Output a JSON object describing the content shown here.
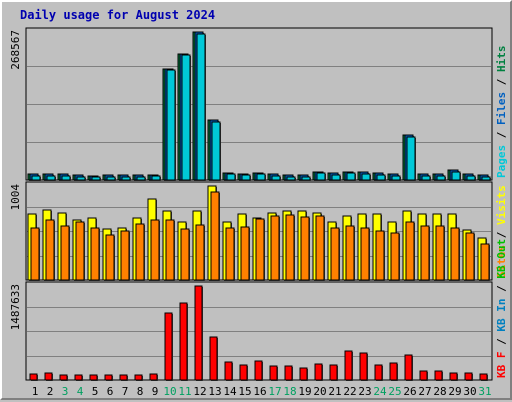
{
  "title": "Daily usage for August 2024",
  "colors": {
    "background": "#c0c0c0",
    "title": "#0000b0",
    "pages": "#00c8d8",
    "files": "#0060c0",
    "hits": "#008040",
    "visits": "#ffff00",
    "sites": "#ff8000",
    "kb_out": "#00c000",
    "kb_in": "#0080c0",
    "kb_f": "#ff0000",
    "weekend_day": "#00a060",
    "weekday_day": "#000000"
  },
  "chart_data": [
    {
      "type": "bar",
      "panel": "pages-files-hits",
      "y_max_label": "268567",
      "ylim": [
        0,
        268567
      ],
      "grid": true,
      "legend_labels": {
        "pages": "Pages",
        "files": "Files",
        "hits": "Hits",
        "sep": " / "
      },
      "series": [
        {
          "key": "hits",
          "name": "Hits",
          "values": [
            10400,
            11000,
            10000,
            8500,
            8000,
            8400,
            9200,
            8900,
            9800,
            202000,
            229500,
            268000,
            108000,
            13300,
            11300,
            13000,
            10500,
            9300,
            8200,
            15000,
            12000,
            14800,
            14300,
            12000,
            11000,
            81000,
            11100,
            10400,
            17500,
            10000,
            9000
          ]
        },
        {
          "key": "files",
          "name": "Files",
          "values": [
            10400,
            11000,
            10000,
            8500,
            8000,
            8400,
            9200,
            8900,
            9800,
            202000,
            229500,
            268000,
            108000,
            13300,
            11300,
            13000,
            10500,
            9300,
            8200,
            15000,
            12000,
            14800,
            14300,
            12000,
            11000,
            81000,
            11100,
            10400,
            17500,
            10000,
            9000
          ]
        },
        {
          "key": "pages",
          "name": "Pages",
          "values": [
            7400,
            8000,
            7000,
            5500,
            5000,
            5400,
            6200,
            5900,
            6800,
            199000,
            226500,
            265000,
            105000,
            10300,
            8300,
            10000,
            7500,
            6300,
            5200,
            12000,
            9000,
            11800,
            11300,
            9000,
            8000,
            78000,
            8100,
            7400,
            14500,
            7000,
            6000
          ]
        }
      ]
    },
    {
      "type": "bar",
      "panel": "visits-sites",
      "y_max_label": "1004",
      "ylim": [
        0,
        1004
      ],
      "grid": true,
      "legend_labels": {
        "visits": "Visits",
        "sites": "Sites",
        "sep": " / "
      },
      "series": [
        {
          "key": "visits",
          "name": "Visits",
          "values": [
            700,
            750,
            720,
            640,
            660,
            540,
            560,
            660,
            860,
            740,
            620,
            740,
            1004,
            620,
            700,
            660,
            720,
            740,
            740,
            720,
            620,
            680,
            700,
            700,
            620,
            740,
            700,
            700,
            700,
            530,
            450
          ]
        },
        {
          "key": "sites",
          "name": "Sites",
          "values": [
            560,
            640,
            580,
            620,
            560,
            480,
            520,
            600,
            640,
            640,
            540,
            590,
            940,
            560,
            570,
            650,
            680,
            690,
            670,
            680,
            560,
            580,
            560,
            520,
            500,
            620,
            580,
            580,
            560,
            500,
            380
          ]
        }
      ]
    },
    {
      "type": "bar",
      "panel": "kbytes",
      "y_max_label": "1487633",
      "ylim": [
        0,
        1487633
      ],
      "grid": true,
      "legend_labels": {
        "kb_f": "KB F",
        "kb_in": "KB In",
        "kb_out": "KB Out",
        "sep": " / "
      },
      "series": [
        {
          "key": "kb_f",
          "name": "KB F",
          "values": [
            95000,
            105000,
            85000,
            80000,
            82000,
            82000,
            87000,
            85000,
            90000,
            1055000,
            1220000,
            1487633,
            680000,
            285000,
            240000,
            305000,
            225000,
            225000,
            190000,
            250000,
            245000,
            460000,
            420000,
            240000,
            275000,
            395000,
            135000,
            140000,
            110000,
            115000,
            100000
          ]
        }
      ]
    }
  ],
  "x_axis": {
    "days": [
      "1",
      "2",
      "3",
      "4",
      "5",
      "6",
      "7",
      "8",
      "9",
      "10",
      "11",
      "12",
      "13",
      "14",
      "15",
      "16",
      "17",
      "18",
      "19",
      "20",
      "21",
      "22",
      "23",
      "24",
      "25",
      "26",
      "27",
      "28",
      "29",
      "30",
      "31"
    ],
    "weekend_days": [
      "3",
      "4",
      "10",
      "11",
      "17",
      "18",
      "24",
      "25",
      "31"
    ]
  }
}
